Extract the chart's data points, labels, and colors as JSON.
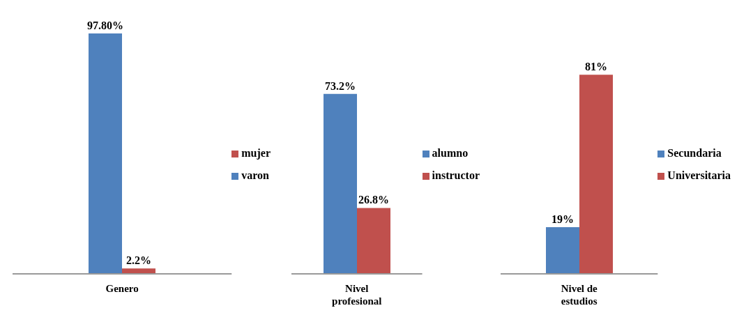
{
  "chart_data": [
    {
      "type": "bar",
      "categories": [
        "Genero"
      ],
      "legend": "right",
      "series": [
        {
          "name": "varon",
          "color": "#4f81bd",
          "values": [
            97.8
          ],
          "value_labels": [
            "97.80%"
          ]
        },
        {
          "name": "mujer",
          "color": "#c0504d",
          "values": [
            2.2
          ],
          "value_labels": [
            "2.2%"
          ]
        }
      ]
    },
    {
      "type": "bar",
      "categories": [
        "Nivel profesional"
      ],
      "legend": "right",
      "series": [
        {
          "name": "alumno",
          "color": "#4f81bd",
          "values": [
            73.2
          ],
          "value_labels": [
            "73.2%"
          ]
        },
        {
          "name": "instructor",
          "color": "#c0504d",
          "values": [
            26.8
          ],
          "value_labels": [
            "26.8%"
          ]
        }
      ]
    },
    {
      "type": "bar",
      "categories": [
        "Nivel de estudios"
      ],
      "legend": "right",
      "series": [
        {
          "name": "Secundaria",
          "color": "#4f81bd",
          "values": [
            19
          ],
          "value_labels": [
            "19%"
          ]
        },
        {
          "name": "Universitaria",
          "color": "#c0504d",
          "values": [
            81
          ],
          "value_labels": [
            "81%"
          ]
        }
      ]
    }
  ]
}
